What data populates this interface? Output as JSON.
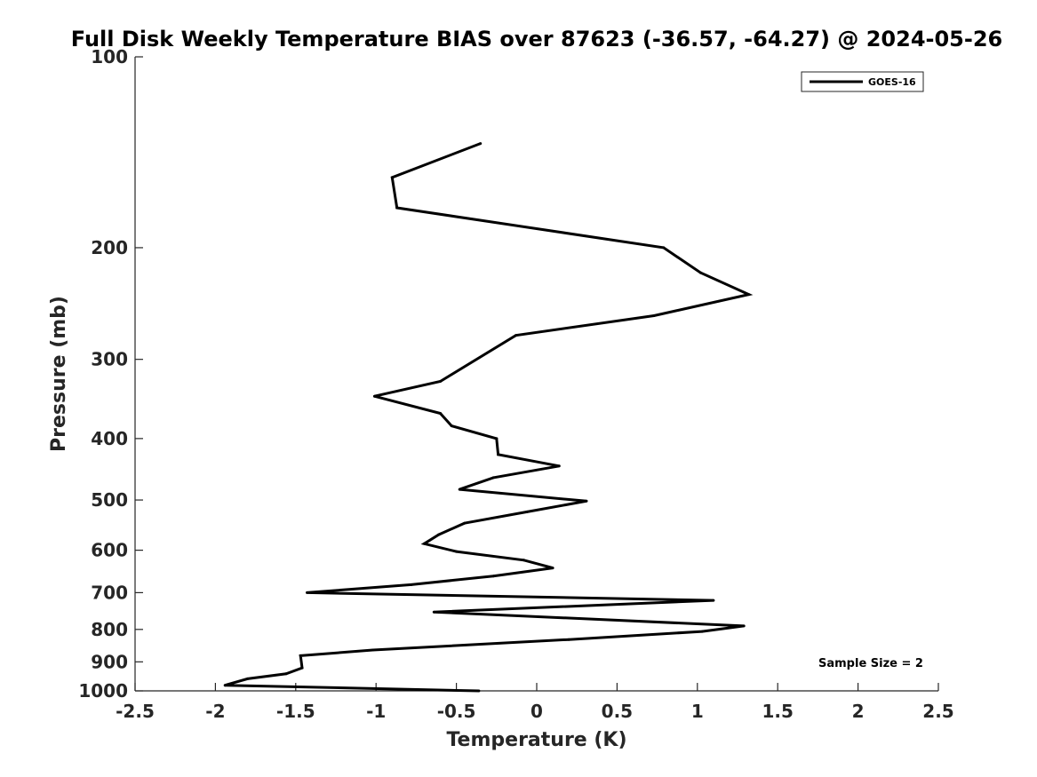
{
  "chart_data": {
    "type": "line",
    "title": "Full Disk Weekly Temperature BIAS over 87623 (-36.57, -64.27) @ 2024-05-26",
    "xlabel": "Temperature (K)",
    "ylabel": "Pressure (mb)",
    "xlim": [
      -2.5,
      2.5
    ],
    "ylim": [
      100,
      1000
    ],
    "y_scale": "log",
    "y_reversed": true,
    "xticks": [
      -2.5,
      -2,
      -1.5,
      -1,
      -0.5,
      0,
      0.5,
      1,
      1.5,
      2,
      2.5
    ],
    "xtick_labels": [
      "-2.5",
      "-2",
      "-1.5",
      "-1",
      "-0.5",
      "0",
      "0.5",
      "1",
      "1.5",
      "2",
      "2.5"
    ],
    "yticks": [
      100,
      200,
      300,
      400,
      500,
      600,
      700,
      800,
      900,
      1000
    ],
    "ytick_labels": [
      "100",
      "200",
      "300",
      "400",
      "500",
      "600",
      "700",
      "800",
      "900",
      "1000"
    ],
    "grid": false,
    "legend_position": "top-right",
    "annotation": "Sample Size = 2",
    "line_color": "#000000",
    "series": [
      {
        "name": "GOES-16",
        "points": [
          {
            "x": -0.35,
            "y": 137
          },
          {
            "x": -0.9,
            "y": 155
          },
          {
            "x": -0.87,
            "y": 173
          },
          {
            "x": 0.79,
            "y": 200
          },
          {
            "x": 1.02,
            "y": 219
          },
          {
            "x": 1.32,
            "y": 237
          },
          {
            "x": 0.73,
            "y": 256
          },
          {
            "x": -0.13,
            "y": 275
          },
          {
            "x": -0.6,
            "y": 325
          },
          {
            "x": -1.01,
            "y": 343
          },
          {
            "x": -0.6,
            "y": 365
          },
          {
            "x": -0.53,
            "y": 382
          },
          {
            "x": -0.25,
            "y": 400
          },
          {
            "x": -0.24,
            "y": 424
          },
          {
            "x": 0.14,
            "y": 442
          },
          {
            "x": -0.27,
            "y": 461
          },
          {
            "x": -0.48,
            "y": 481
          },
          {
            "x": 0.31,
            "y": 502
          },
          {
            "x": -0.06,
            "y": 522
          },
          {
            "x": -0.45,
            "y": 544
          },
          {
            "x": -0.61,
            "y": 567
          },
          {
            "x": -0.7,
            "y": 586
          },
          {
            "x": -0.5,
            "y": 603
          },
          {
            "x": -0.08,
            "y": 622
          },
          {
            "x": 0.1,
            "y": 640
          },
          {
            "x": -0.27,
            "y": 659
          },
          {
            "x": -0.78,
            "y": 680
          },
          {
            "x": -1.43,
            "y": 700
          },
          {
            "x": 1.1,
            "y": 720
          },
          {
            "x": -0.64,
            "y": 751
          },
          {
            "x": 1.29,
            "y": 790
          },
          {
            "x": 1.03,
            "y": 806
          },
          {
            "x": 0.2,
            "y": 830
          },
          {
            "x": -1.02,
            "y": 862
          },
          {
            "x": -1.47,
            "y": 880
          },
          {
            "x": -1.46,
            "y": 920
          },
          {
            "x": -1.56,
            "y": 940
          },
          {
            "x": -1.8,
            "y": 957
          },
          {
            "x": -1.94,
            "y": 980
          },
          {
            "x": -0.36,
            "y": 1000
          }
        ]
      }
    ]
  }
}
